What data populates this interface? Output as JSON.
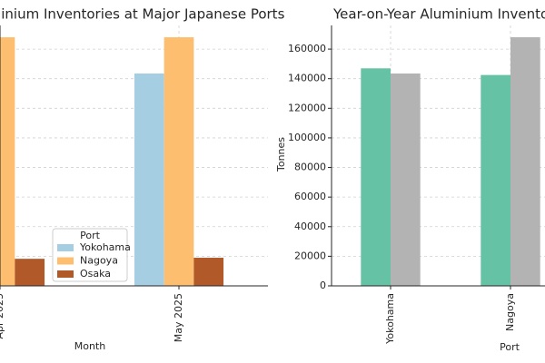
{
  "chart_data": [
    {
      "type": "bar",
      "title": "minium Inventories at Major Japanese Ports",
      "xlabel": "Month",
      "legend_title": "Port",
      "categories": [
        "Apr 2025",
        "May 2025"
      ],
      "series": [
        {
          "name": "Yokohama",
          "color": "#a6cee3",
          "values": [
            null,
            143500
          ]
        },
        {
          "name": "Nagoya",
          "color": "#fdbf6f",
          "values": [
            168000,
            168000
          ]
        },
        {
          "name": "Osaka",
          "color": "#b15928",
          "values": [
            18300,
            19000
          ]
        }
      ],
      "ylim": [
        0,
        176000
      ],
      "grid": true
    },
    {
      "type": "bar",
      "title": "Year-on-Year Aluminium Inventor",
      "xlabel": "Port",
      "ylabel": "Tonnes",
      "categories": [
        "Yokohama",
        "Nagoya"
      ],
      "series": [
        {
          "color": "#66c2a5",
          "values": [
            147000,
            142500
          ]
        },
        {
          "color": "#b3b3b3",
          "values": [
            143500,
            168000
          ]
        }
      ],
      "ylim": [
        0,
        176000
      ],
      "yticks": [
        0,
        20000,
        40000,
        60000,
        80000,
        100000,
        120000,
        140000,
        160000
      ],
      "grid": true
    }
  ]
}
